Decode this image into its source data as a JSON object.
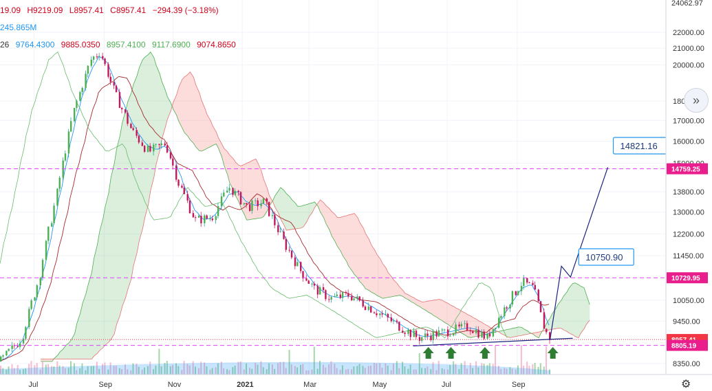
{
  "legend": {
    "ohlc_text": [
      "19.09",
      "H9219.09",
      "L8957.41",
      "C8957.41",
      "−294.39 (−3.18%)"
    ],
    "volume_text": "245.865M",
    "ichimoku": {
      "label": "26",
      "values": [
        {
          "text": "9764.4300",
          "color": "#2196f3"
        },
        {
          "text": "9885.0350",
          "color": "#d0021b"
        },
        {
          "text": "8957.4100",
          "color": "#4caf50"
        },
        {
          "text": "9117.6900",
          "color": "#4caf50"
        },
        {
          "text": "9074.8650",
          "color": "#d0021b"
        }
      ]
    }
  },
  "price_scale": {
    "top_value": "24062.97",
    "ticks": [
      "22000.00",
      "21000.00",
      "20000.00",
      "18000.00",
      "17000.00",
      "16000.00",
      "15000.00",
      "13800.00",
      "13000.00",
      "12200.00",
      "11450.00",
      "10050.00",
      "9450.00",
      "8350.00"
    ],
    "log_scale": true
  },
  "time_axis": {
    "labels": [
      "Jul",
      "Sep",
      "Nov",
      "2021",
      "Mar",
      "May",
      "Jul",
      "Sep"
    ]
  },
  "tags": [
    {
      "text": "14759.25",
      "color": "#e91e8c"
    },
    {
      "text": "10729.95",
      "color": "#e91e8c"
    },
    {
      "text": "8957.41",
      "color": "#f23645"
    },
    {
      "text": "8805.19",
      "color": "#e91e8c"
    }
  ],
  "callouts": [
    {
      "text": "14821.16"
    },
    {
      "text": "10750.90"
    }
  ],
  "chart_data": {
    "type": "candlestick",
    "scale": "log",
    "ylim": [
      8000,
      24062.97
    ],
    "x_labels": [
      "Jul",
      "Sep",
      "Nov",
      "2021",
      "Mar",
      "May",
      "Jul",
      "Sep"
    ],
    "close_series": [
      [
        "2020-06-01",
        8400
      ],
      [
        "2020-06-20",
        9000
      ],
      [
        "2020-07-05",
        10700
      ],
      [
        "2020-07-20",
        13500
      ],
      [
        "2020-08-05",
        17500
      ],
      [
        "2020-08-20",
        20300
      ],
      [
        "2020-08-28",
        20800
      ],
      [
        "2020-09-10",
        18400
      ],
      [
        "2020-09-25",
        16500
      ],
      [
        "2020-10-10",
        15500
      ],
      [
        "2020-10-25",
        15900
      ],
      [
        "2020-11-05",
        14200
      ],
      [
        "2020-11-20",
        12700
      ],
      [
        "2020-12-05",
        12800
      ],
      [
        "2020-12-20",
        14000
      ],
      [
        "2021-01-05",
        13200
      ],
      [
        "2021-01-20",
        13400
      ],
      [
        "2021-02-05",
        12000
      ],
      [
        "2021-02-20",
        11000
      ],
      [
        "2021-03-05",
        10400
      ],
      [
        "2021-03-20",
        10100
      ],
      [
        "2021-04-05",
        10200
      ],
      [
        "2021-04-20",
        9900
      ],
      [
        "2021-05-05",
        9600
      ],
      [
        "2021-05-20",
        9300
      ],
      [
        "2021-06-05",
        9000
      ],
      [
        "2021-06-20",
        9100
      ],
      [
        "2021-07-05",
        9200
      ],
      [
        "2021-07-20",
        9300
      ],
      [
        "2021-08-05",
        9000
      ],
      [
        "2021-08-20",
        9800
      ],
      [
        "2021-09-05",
        10600
      ],
      [
        "2021-09-15",
        10400
      ],
      [
        "2021-09-25",
        9200
      ],
      [
        "2021-09-30",
        8957.41
      ]
    ],
    "horizontal_levels": [
      14759.25,
      10729.95,
      8957.41,
      8805.19
    ],
    "projection_path": [
      [
        "2021-09-30",
        8957.41
      ],
      [
        "2021-10-10",
        11100
      ],
      [
        "2021-10-18",
        10750.9
      ],
      [
        "2021-11-20",
        14821.16
      ]
    ],
    "callout_values": [
      14821.16,
      10750.9
    ],
    "support_markers": [
      "2021-06-12",
      "2021-07-02",
      "2021-08-01",
      "2021-09-30"
    ]
  }
}
